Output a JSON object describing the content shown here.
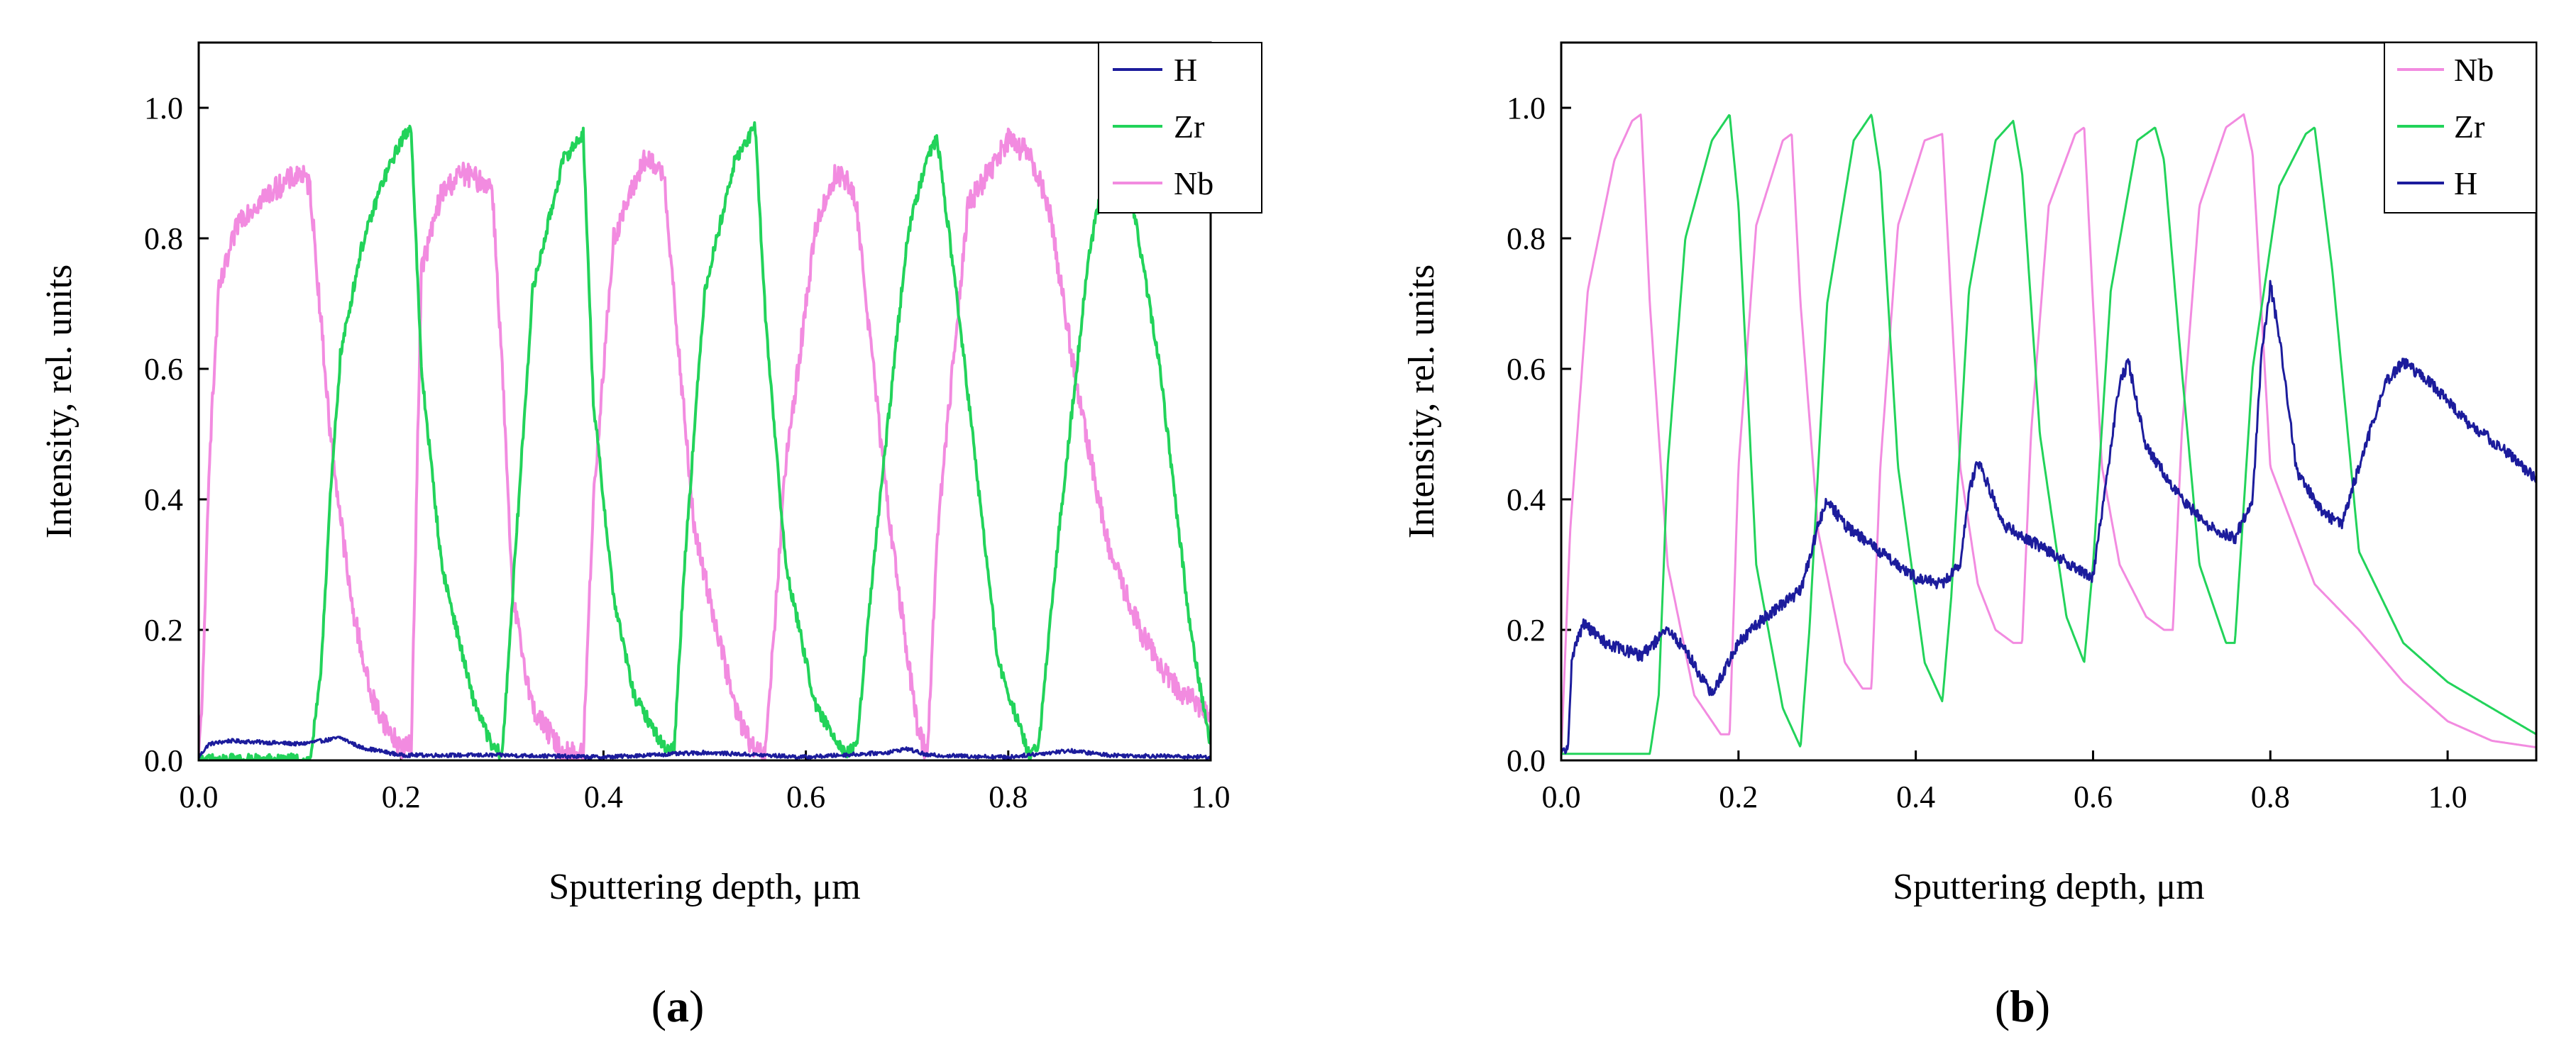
{
  "chart_data": [
    {
      "type": "line",
      "caption_open": "(",
      "caption_letter": "a",
      "caption_close": ")",
      "xlabel": "Sputtering depth, μm",
      "ylabel": "Intensity, rel. units",
      "xlim": [
        0.0,
        1.0
      ],
      "ylim": [
        0.0,
        1.1
      ],
      "xticks": [
        "0.0",
        "0.2",
        "0.4",
        "0.6",
        "0.8",
        "1.0"
      ],
      "yticks": [
        "0.0",
        "0.2",
        "0.4",
        "0.6",
        "0.8",
        "1.0"
      ],
      "legend_position": "top-right",
      "series": [
        {
          "name": "H",
          "color": "#1c1c9c",
          "noise": 0.003,
          "x": [
            0,
            0.01,
            0.03,
            0.06,
            0.1,
            0.13,
            0.14,
            0.16,
            0.2,
            0.3,
            0.4,
            0.5,
            0.6,
            0.68,
            0.7,
            0.72,
            0.8,
            0.86,
            0.9,
            1.0
          ],
          "y": [
            0.005,
            0.025,
            0.03,
            0.028,
            0.025,
            0.032,
            0.035,
            0.02,
            0.008,
            0.008,
            0.005,
            0.012,
            0.005,
            0.012,
            0.018,
            0.008,
            0.005,
            0.015,
            0.008,
            0.005
          ]
        },
        {
          "name": "Zr",
          "color": "#22d35a",
          "noise": 0.01,
          "x": [
            0,
            0.11,
            0.12,
            0.13,
            0.14,
            0.16,
            0.18,
            0.2,
            0.21,
            0.22,
            0.24,
            0.27,
            0.29,
            0.3,
            0.31,
            0.33,
            0.36,
            0.38,
            0.39,
            0.41,
            0.43,
            0.46,
            0.47,
            0.48,
            0.5,
            0.53,
            0.55,
            0.56,
            0.58,
            0.61,
            0.64,
            0.65,
            0.67,
            0.7,
            0.72,
            0.73,
            0.75,
            0.79,
            0.82,
            0.83,
            0.85,
            0.88,
            0.9,
            0.92,
            0.95,
            0.98,
            1.0
          ],
          "y": [
            0.0,
            0.0,
            0.12,
            0.4,
            0.62,
            0.78,
            0.88,
            0.95,
            0.97,
            0.6,
            0.3,
            0.1,
            0.02,
            0.01,
            0.25,
            0.72,
            0.92,
            0.96,
            0.55,
            0.25,
            0.1,
            0.02,
            0.02,
            0.3,
            0.72,
            0.92,
            0.97,
            0.68,
            0.3,
            0.08,
            0.01,
            0.02,
            0.35,
            0.8,
            0.93,
            0.95,
            0.7,
            0.15,
            0.01,
            0.02,
            0.35,
            0.78,
            0.93,
            0.88,
            0.6,
            0.2,
            0.02
          ]
        },
        {
          "name": "Nb",
          "color": "#f28be0",
          "noise": 0.018,
          "x": [
            0,
            0.005,
            0.01,
            0.02,
            0.04,
            0.07,
            0.1,
            0.11,
            0.13,
            0.15,
            0.17,
            0.19,
            0.2,
            0.21,
            0.22,
            0.24,
            0.26,
            0.29,
            0.3,
            0.31,
            0.33,
            0.36,
            0.38,
            0.39,
            0.41,
            0.44,
            0.46,
            0.47,
            0.49,
            0.53,
            0.55,
            0.56,
            0.58,
            0.61,
            0.63,
            0.64,
            0.65,
            0.68,
            0.71,
            0.72,
            0.73,
            0.76,
            0.8,
            0.82,
            0.84,
            0.87,
            0.9,
            0.93,
            0.96,
            1.0
          ],
          "y": [
            0.0,
            0.15,
            0.45,
            0.72,
            0.83,
            0.87,
            0.9,
            0.88,
            0.5,
            0.25,
            0.1,
            0.04,
            0.02,
            0.02,
            0.75,
            0.87,
            0.9,
            0.88,
            0.6,
            0.25,
            0.08,
            0.01,
            0.01,
            0.4,
            0.8,
            0.92,
            0.9,
            0.7,
            0.35,
            0.08,
            0.01,
            0.01,
            0.45,
            0.82,
            0.9,
            0.89,
            0.85,
            0.4,
            0.05,
            0.01,
            0.35,
            0.85,
            0.95,
            0.93,
            0.85,
            0.55,
            0.32,
            0.2,
            0.12,
            0.07
          ]
        }
      ]
    },
    {
      "type": "line",
      "caption_open": "(",
      "caption_letter": "b",
      "caption_close": ")",
      "xlabel": "Sputtering depth, μm",
      "ylabel": "Intensity, rel. units",
      "xlim": [
        0.0,
        1.1
      ],
      "ylim": [
        0.0,
        1.1
      ],
      "xticks": [
        "0.0",
        "0.2",
        "0.4",
        "0.6",
        "0.8",
        "1.0"
      ],
      "yticks": [
        "0.0",
        "0.2",
        "0.4",
        "0.6",
        "0.8",
        "1.0"
      ],
      "legend_position": "top-right",
      "series": [
        {
          "name": "Nb",
          "color": "#f28be0",
          "noise": 0,
          "x": [
            0,
            0.01,
            0.03,
            0.06,
            0.08,
            0.09,
            0.1,
            0.12,
            0.15,
            0.18,
            0.19,
            0.2,
            0.22,
            0.25,
            0.26,
            0.27,
            0.29,
            0.32,
            0.34,
            0.35,
            0.36,
            0.38,
            0.41,
            0.43,
            0.44,
            0.45,
            0.47,
            0.49,
            0.51,
            0.52,
            0.53,
            0.55,
            0.58,
            0.59,
            0.6,
            0.61,
            0.63,
            0.66,
            0.68,
            0.69,
            0.7,
            0.72,
            0.75,
            0.77,
            0.78,
            0.8,
            0.85,
            0.9,
            0.95,
            1.0,
            1.05,
            1.1
          ],
          "y": [
            0.01,
            0.35,
            0.72,
            0.92,
            0.98,
            0.99,
            0.7,
            0.3,
            0.1,
            0.04,
            0.04,
            0.45,
            0.82,
            0.95,
            0.96,
            0.7,
            0.35,
            0.15,
            0.11,
            0.11,
            0.45,
            0.82,
            0.95,
            0.96,
            0.7,
            0.45,
            0.27,
            0.2,
            0.18,
            0.18,
            0.5,
            0.85,
            0.96,
            0.97,
            0.7,
            0.45,
            0.3,
            0.22,
            0.2,
            0.2,
            0.5,
            0.85,
            0.97,
            0.99,
            0.93,
            0.45,
            0.27,
            0.2,
            0.12,
            0.06,
            0.03,
            0.02
          ]
        },
        {
          "name": "Zr",
          "color": "#22d35a",
          "noise": 0,
          "x": [
            0,
            0.1,
            0.11,
            0.12,
            0.14,
            0.17,
            0.19,
            0.2,
            0.22,
            0.25,
            0.27,
            0.28,
            0.3,
            0.33,
            0.35,
            0.36,
            0.38,
            0.41,
            0.43,
            0.44,
            0.46,
            0.49,
            0.51,
            0.52,
            0.54,
            0.57,
            0.59,
            0.6,
            0.62,
            0.65,
            0.67,
            0.68,
            0.7,
            0.72,
            0.75,
            0.76,
            0.78,
            0.81,
            0.84,
            0.85,
            0.87,
            0.9,
            0.95,
            1.0,
            1.05,
            1.1
          ],
          "y": [
            0.01,
            0.01,
            0.1,
            0.45,
            0.8,
            0.95,
            0.99,
            0.85,
            0.3,
            0.08,
            0.02,
            0.2,
            0.7,
            0.95,
            0.99,
            0.9,
            0.45,
            0.15,
            0.09,
            0.25,
            0.72,
            0.95,
            0.98,
            0.9,
            0.5,
            0.22,
            0.15,
            0.3,
            0.72,
            0.95,
            0.97,
            0.92,
            0.6,
            0.3,
            0.18,
            0.18,
            0.6,
            0.88,
            0.96,
            0.97,
            0.75,
            0.32,
            0.18,
            0.12,
            0.08,
            0.04
          ]
        },
        {
          "name": "H",
          "color": "#1c1c9c",
          "noise": 0.009,
          "x": [
            0,
            0.008,
            0.012,
            0.025,
            0.05,
            0.09,
            0.12,
            0.14,
            0.17,
            0.2,
            0.23,
            0.27,
            0.29,
            0.3,
            0.32,
            0.36,
            0.4,
            0.43,
            0.45,
            0.46,
            0.47,
            0.5,
            0.55,
            0.6,
            0.61,
            0.63,
            0.64,
            0.66,
            0.7,
            0.73,
            0.76,
            0.78,
            0.79,
            0.8,
            0.81,
            0.83,
            0.86,
            0.88,
            0.9,
            0.93,
            0.95,
            0.98,
            1.02,
            1.06,
            1.1
          ],
          "y": [
            0.01,
            0.02,
            0.16,
            0.21,
            0.18,
            0.16,
            0.2,
            0.17,
            0.1,
            0.18,
            0.22,
            0.26,
            0.36,
            0.4,
            0.36,
            0.32,
            0.28,
            0.27,
            0.3,
            0.41,
            0.46,
            0.36,
            0.32,
            0.28,
            0.38,
            0.58,
            0.61,
            0.48,
            0.4,
            0.36,
            0.34,
            0.4,
            0.62,
            0.73,
            0.65,
            0.44,
            0.38,
            0.36,
            0.45,
            0.58,
            0.61,
            0.58,
            0.52,
            0.48,
            0.43
          ]
        }
      ]
    }
  ]
}
